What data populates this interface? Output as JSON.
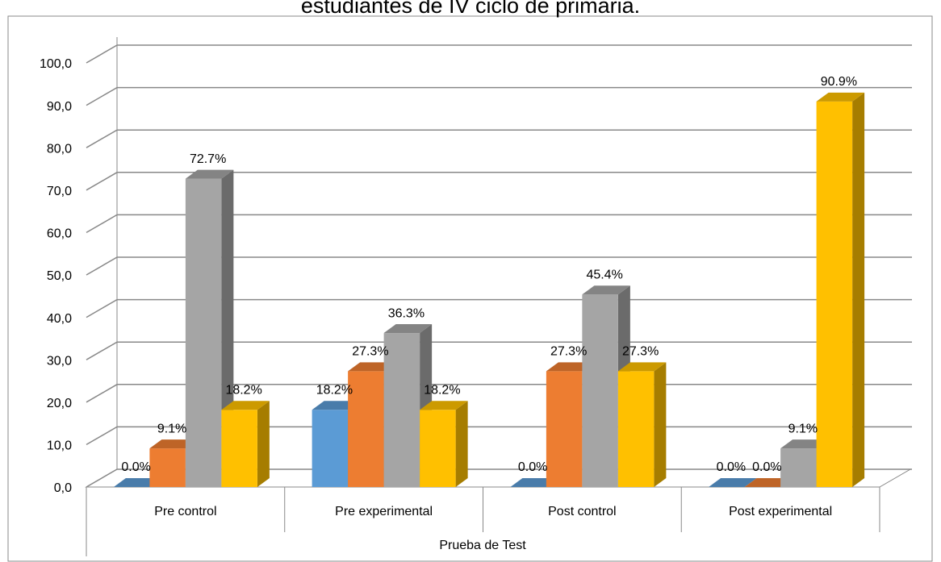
{
  "chart_data": {
    "type": "bar3d",
    "title": "estudiantes de IV ciclo de primaria.",
    "x_label": "Prueba de Test",
    "categories": [
      "Pre control",
      "Pre experimental",
      "Post control",
      "Post experimental"
    ],
    "series": [
      {
        "color": "#5b9bd5",
        "values": [
          0,
          18.2,
          0,
          0
        ],
        "value_labels": [
          "0.0%",
          "18.2%",
          "0.0%",
          "0.0%"
        ]
      },
      {
        "color": "#ed7d31",
        "values": [
          9.1,
          27.3,
          27.3,
          0
        ],
        "value_labels": [
          "9.1%",
          "27.3%",
          "27.3%",
          "0.0%"
        ]
      },
      {
        "color": "#a5a5a5",
        "values": [
          72.7,
          36.3,
          45.4,
          9.1
        ],
        "value_labels": [
          "72.7%",
          "36.3%",
          "45.4%",
          "9.1%"
        ]
      },
      {
        "color": "#ffc000",
        "values": [
          18.2,
          18.2,
          27.3,
          90.9
        ],
        "value_labels": [
          "18.2%",
          "18.2%",
          "27.3%",
          "90.9%"
        ]
      }
    ],
    "ylim": [
      0,
      100
    ],
    "yticks": [
      {
        "value": 0,
        "label": "0,0"
      },
      {
        "value": 10,
        "label": "10,0"
      },
      {
        "value": 20,
        "label": "20,0"
      },
      {
        "value": 30,
        "label": "30,0"
      },
      {
        "value": 40,
        "label": "40,0"
      },
      {
        "value": 50,
        "label": "50,0"
      },
      {
        "value": 60,
        "label": "60,0"
      },
      {
        "value": 70,
        "label": "70,0"
      },
      {
        "value": 80,
        "label": "80,0"
      },
      {
        "value": 90,
        "label": "90,0"
      },
      {
        "value": 100,
        "label": "100,0"
      }
    ],
    "grid": true
  }
}
